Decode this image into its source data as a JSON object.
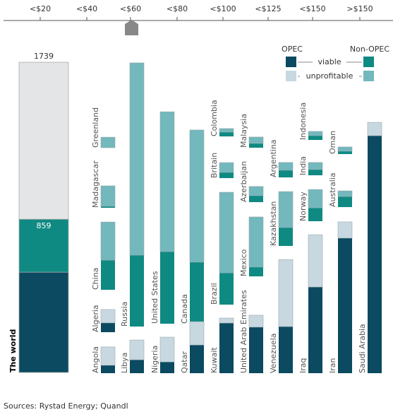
{
  "chart_data": {
    "type": "bar",
    "price_bands": [
      "<$20",
      "<$40",
      "<$60",
      "<$80",
      "<$100",
      "<$125",
      "<$150",
      ">$150"
    ],
    "legend": {
      "opec": "OPEC",
      "non_opec": "Non-OPEC",
      "viable": "viable",
      "unprofitable": "unprofitable"
    },
    "colors": {
      "opec_viable": "#0b4a60",
      "non_opec_viable": "#0f8a82",
      "opec_unprofitable": "#c8d8e0",
      "non_opec_unprofitable": "#72b8bd",
      "world_unprofitable": "#e3e5e7"
    },
    "world": {
      "label": "The world",
      "opec_viable": 562,
      "non_opec_viable": 297,
      "unprofitable": 880,
      "viable": 859,
      "total": 1739
    },
    "categories": [
      "Greenland",
      "Madagascar",
      "China",
      "Algeria",
      "Angola",
      "Russia",
      "Libya",
      "United States",
      "Nigeria",
      "Canada",
      "Qatar",
      "Colombia",
      "Britain",
      "Brazil",
      "Kuwait",
      "Malaysia",
      "Azerbaijan",
      "Mexico",
      "United Arab Emirates",
      "Argentina",
      "Kazakhstan",
      "Venezuela",
      "Indonesia",
      "India",
      "Norway",
      "Iraq",
      "Oman",
      "Australia",
      "Iran",
      "Saudi Arabia"
    ],
    "opec": [
      false,
      false,
      false,
      true,
      true,
      false,
      true,
      false,
      true,
      false,
      true,
      false,
      false,
      false,
      true,
      false,
      false,
      false,
      true,
      false,
      false,
      true,
      false,
      false,
      false,
      true,
      false,
      false,
      true,
      true
    ],
    "series": [
      {
        "name": "viable",
        "values": [
          0,
          8,
          166,
          52,
          44,
          400,
          75,
          404,
          63,
          345,
          158,
          24,
          32,
          178,
          281,
          24,
          36,
          52,
          258,
          40,
          103,
          261,
          24,
          32,
          75,
          483,
          16,
          59,
          757,
          1331
        ]
      },
      {
        "name": "unprofitable",
        "values": [
          59,
          115,
          214,
          75,
          103,
          1078,
          111,
          784,
          139,
          741,
          131,
          20,
          55,
          452,
          28,
          36,
          52,
          281,
          67,
          44,
          202,
          376,
          24,
          40,
          103,
          293,
          24,
          32,
          91,
          75
        ]
      }
    ],
    "source": "Sources: Rystad Energy; Quandl"
  }
}
